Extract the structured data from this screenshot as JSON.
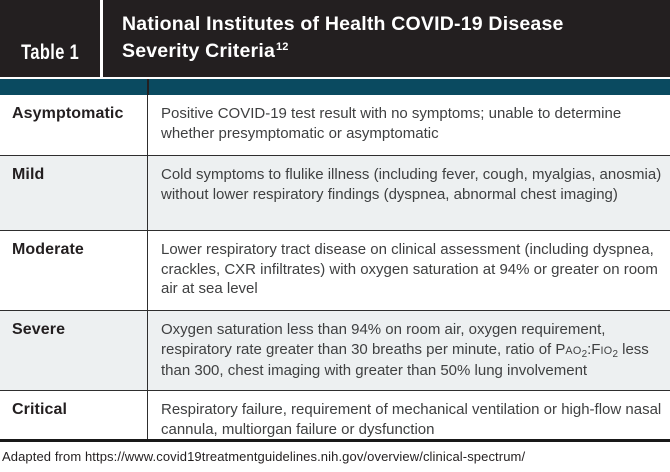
{
  "header": {
    "table_label": "Table 1",
    "title_line1": "National Institutes of Health COVID-19 Disease",
    "title_line2": "Severity Criteria",
    "title_superscript": "12"
  },
  "table": {
    "rows": [
      {
        "label": "Asymptomatic",
        "description": "Positive COVID-19 test result with no symptoms; unable to determine whether presymptomatic or asymptomatic"
      },
      {
        "label": "Mild",
        "description": "Cold symptoms to flulike illness (including fever, cough, myalgias, anosmia) without lower respiratory findings (dyspnea, abnormal chest imaging)"
      },
      {
        "label": "Moderate",
        "description": "Lower respiratory tract disease on clinical assessment (including dyspnea, crackles, CXR infiltrates) with oxygen saturation at 94% or greater on room air at sea level"
      },
      {
        "label": "Severe",
        "description": "Oxygen saturation less than 94% on room air, oxygen requirement, respiratory rate greater than 30 breaths per minute, ratio of PAO2:FIO2 less than 300, chest imaging with greater than 50% lung involvement"
      },
      {
        "label": "Critical",
        "description": "Respiratory failure, requirement of mechanical ventilation or high-flow nasal cannula, multiorgan failure or dysfunction"
      }
    ]
  },
  "footer": {
    "source": "Adapted from https://www.covid19treatmentguidelines.nih.gov/overview/clinical-spectrum/"
  },
  "colors": {
    "header_bg": "#231f20",
    "accent_teal": "#0a4a60",
    "row_alt_bg": "#edf0f1",
    "rule": "#2e2e2e",
    "text_primary": "#231f20",
    "text_body": "#3f4041"
  }
}
